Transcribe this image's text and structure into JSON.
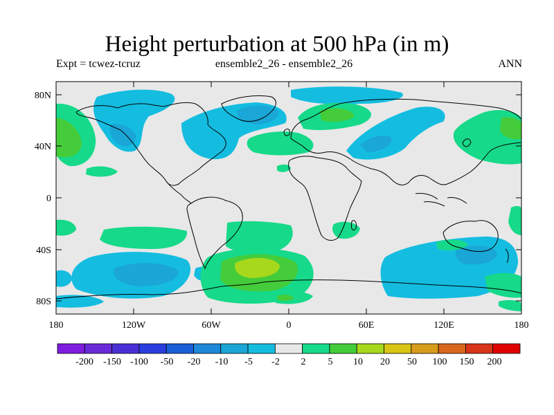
{
  "title": "Height perturbation at 500 hPa (in m)",
  "subtitle_left": "Expt = tcwez-tcruz",
  "subtitle_center": "ensemble2_26 - ensemble2_26",
  "subtitle_right": "ANN",
  "map": {
    "projection": "cylindrical-equidistant",
    "lon_range": [
      -180,
      180
    ],
    "lat_range": [
      -90,
      90
    ],
    "x_ticks": [
      "180",
      "120W",
      "60W",
      "0",
      "60E",
      "120E",
      "180"
    ],
    "y_ticks": [
      "80N",
      "40N",
      "0",
      "40S",
      "80S"
    ],
    "background_color": "#e8e8e8"
  },
  "colorbar": {
    "labels": [
      "-200",
      "-150",
      "-100",
      "-50",
      "-20",
      "-10",
      "-5",
      "-2",
      "2",
      "5",
      "10",
      "20",
      "50",
      "100",
      "150",
      "200"
    ],
    "colors": [
      "#7f1ce0",
      "#6a2ad9",
      "#4b2fd6",
      "#2a3ee0",
      "#1b5fd8",
      "#1e88d8",
      "#1aa6d6",
      "#14bde0",
      "#e8e8e8",
      "#16d98a",
      "#44cc3a",
      "#a8d81c",
      "#d8c414",
      "#d89c1c",
      "#d8681c",
      "#d8341a",
      "#e00000"
    ]
  }
}
